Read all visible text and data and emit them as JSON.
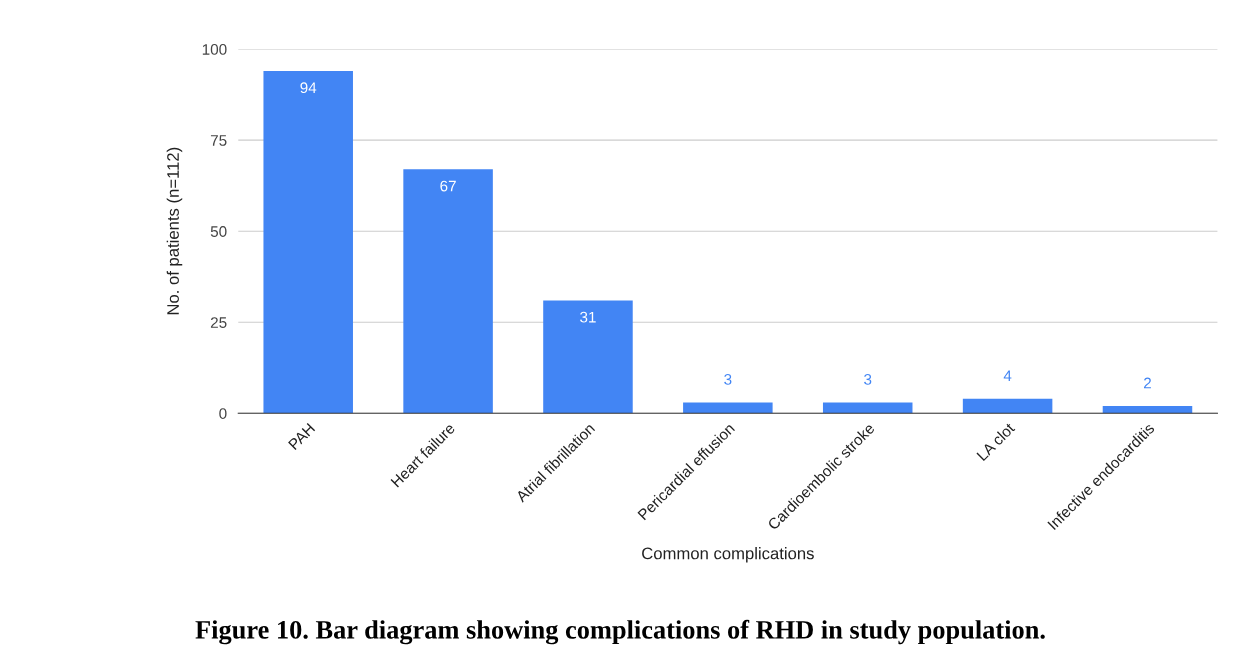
{
  "chart_data": {
    "type": "bar",
    "xlabel": "Common complications",
    "ylabel": "No. of patients (n=112)",
    "categories": [
      "PAH",
      "Heart failure",
      "Atrial fibrillation",
      "Pericardial effusion",
      "Cardioembolic stroke",
      "LA clot",
      "Infective endocarditis"
    ],
    "values": [
      94,
      67,
      31,
      3,
      3,
      4,
      2
    ],
    "color": "#4285f4",
    "ylim": [
      0,
      100
    ],
    "yticks": [
      0,
      25,
      50,
      75,
      100
    ],
    "grid": "y",
    "data_labels": true,
    "annotations": [
      "Figure 10. Bar diagram showing complications of RHD in study population."
    ]
  }
}
